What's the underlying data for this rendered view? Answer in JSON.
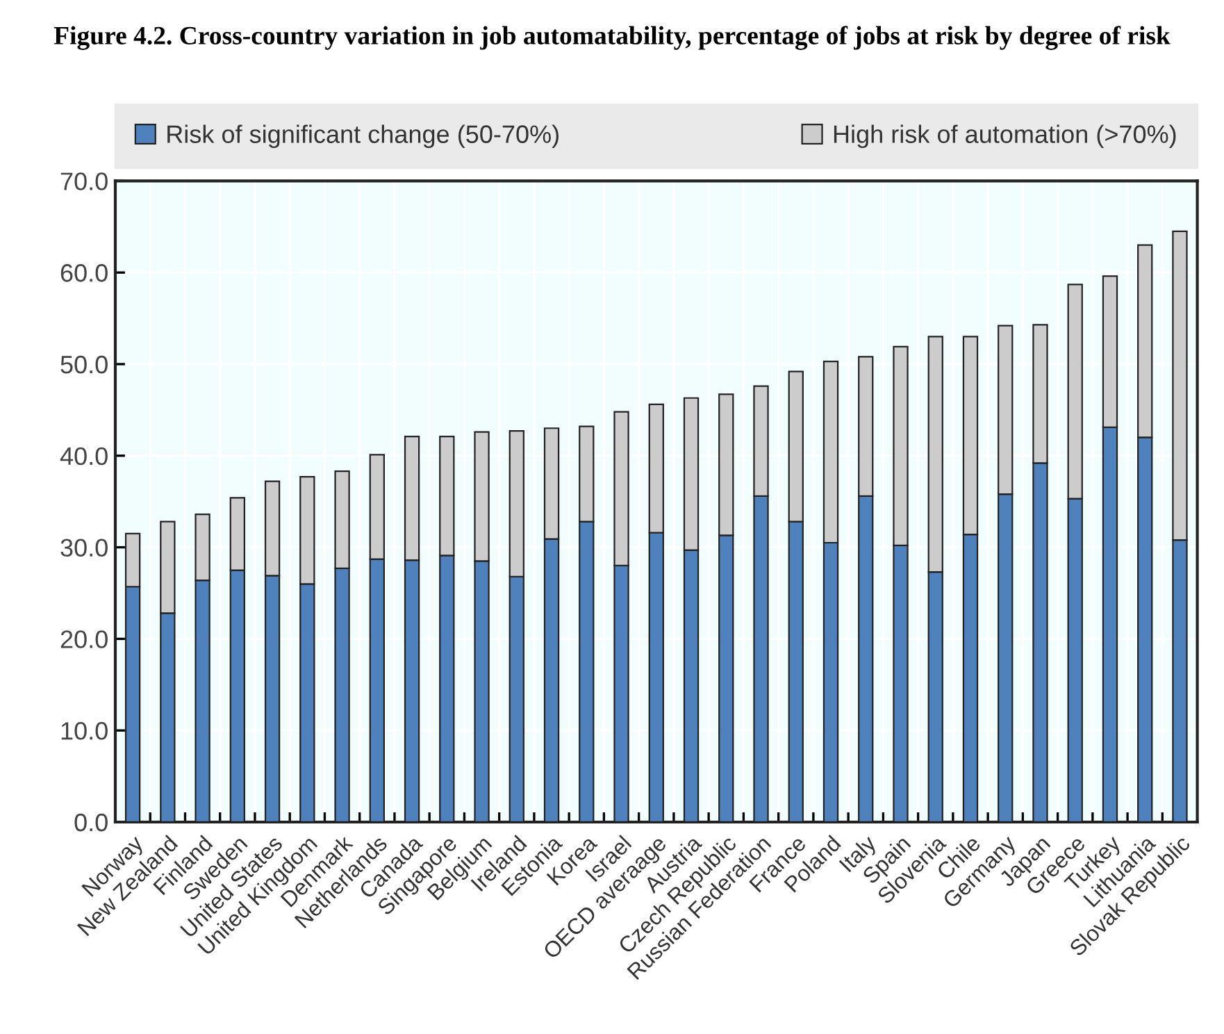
{
  "chart_data": {
    "type": "bar",
    "stacked": true,
    "title": "Figure 4.2. Cross-country variation in job automatability, percentage of jobs at risk by degree of risk",
    "categories": [
      "Norway",
      "New Zealand",
      "Finland",
      "Sweden",
      "United States",
      "United Kingdom",
      "Denmark",
      "Netherlands",
      "Canada",
      "Singapore",
      "Belgium",
      "Ireland",
      "Estonia",
      "Korea",
      "Israel",
      "OECD averaage",
      "Austria",
      "Czech Republic",
      "Russian Federation",
      "France",
      "Poland",
      "Italy",
      "Spain",
      "Slovenia",
      "Chile",
      "Germany",
      "Japan",
      "Greece",
      "Turkey",
      "Lithuania",
      "Slovak Republic"
    ],
    "series": [
      {
        "name": "Risk of significant change (50-70%)",
        "color": "#4f81bd",
        "values": [
          25.7,
          22.8,
          26.4,
          27.5,
          26.9,
          26.0,
          27.7,
          28.7,
          28.6,
          29.1,
          28.5,
          26.8,
          30.9,
          32.8,
          28.0,
          31.6,
          29.7,
          31.3,
          35.6,
          32.8,
          30.5,
          35.6,
          30.2,
          27.3,
          31.4,
          35.8,
          39.2,
          35.3,
          43.1,
          42.0,
          30.8
        ]
      },
      {
        "name": "High risk of automation (>70%)",
        "color": "#cccccc",
        "values": [
          5.8,
          10.0,
          7.2,
          7.9,
          10.3,
          11.7,
          10.6,
          11.4,
          13.5,
          13.0,
          14.1,
          15.9,
          12.1,
          10.4,
          16.8,
          14.0,
          16.6,
          15.4,
          12.0,
          16.4,
          19.8,
          15.2,
          21.7,
          25.7,
          21.6,
          18.4,
          15.1,
          23.4,
          16.5,
          21.0,
          33.7
        ]
      }
    ],
    "ylim": [
      0,
      70
    ],
    "yticks": [
      {
        "value": 0,
        "label": "0.0"
      },
      {
        "value": 10,
        "label": "10.0"
      },
      {
        "value": 20,
        "label": "20.0"
      },
      {
        "value": 30,
        "label": "30.0"
      },
      {
        "value": 40,
        "label": "40.0"
      },
      {
        "value": 50,
        "label": "50.0"
      },
      {
        "value": 60,
        "label": "60.0"
      },
      {
        "value": 70,
        "label": "70.0"
      }
    ],
    "grid": true,
    "legend": "top"
  }
}
